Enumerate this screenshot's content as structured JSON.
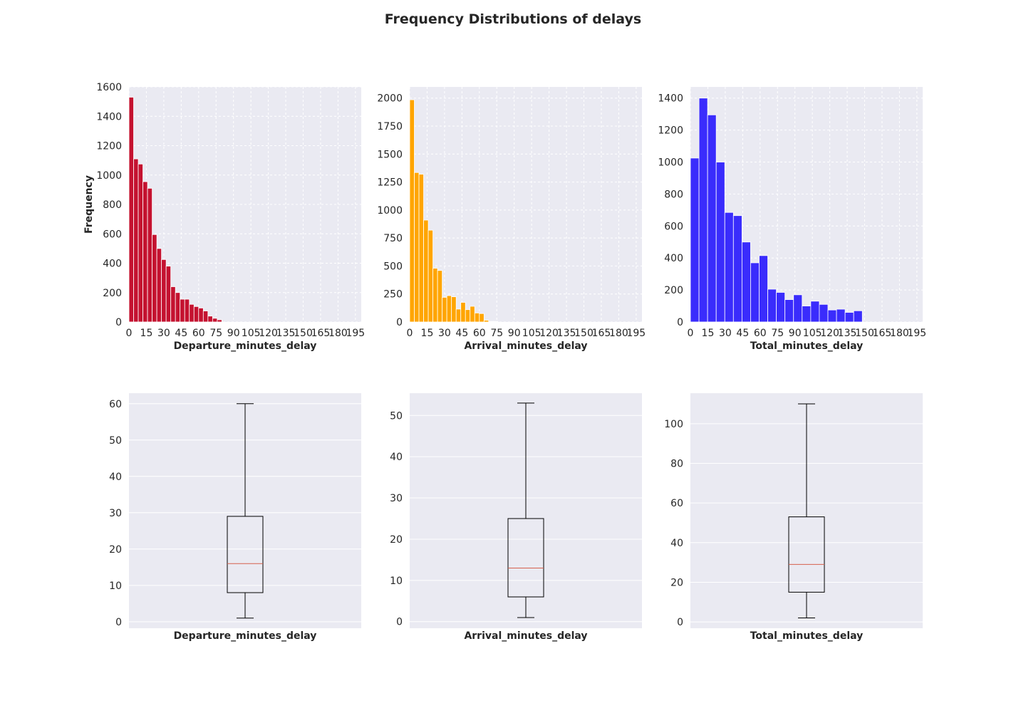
{
  "title": "Frequency Distributions of delays",
  "colors": {
    "background": "#eaeaf2",
    "grid": "#ffffff",
    "median": "#d6604d",
    "box_line": "#000000"
  },
  "chart_data": [
    {
      "type": "bar",
      "subtype": "histogram",
      "xlabel": "Departure_minutes_delay",
      "ylabel": "Frequency",
      "color": "#c41230",
      "xlim": [
        0,
        200
      ],
      "ylim": [
        0,
        1600
      ],
      "xticks": [
        0,
        15,
        30,
        45,
        60,
        75,
        90,
        105,
        120,
        135,
        150,
        165,
        180,
        195
      ],
      "yticks": [
        0,
        200,
        400,
        600,
        800,
        1000,
        1200,
        1400,
        1600
      ],
      "bin_width": 4,
      "bins": [
        {
          "x": 0,
          "value": 1530
        },
        {
          "x": 4,
          "value": 1110
        },
        {
          "x": 8,
          "value": 1075
        },
        {
          "x": 12,
          "value": 955
        },
        {
          "x": 16,
          "value": 910
        },
        {
          "x": 20,
          "value": 595
        },
        {
          "x": 24,
          "value": 500
        },
        {
          "x": 28,
          "value": 425
        },
        {
          "x": 32,
          "value": 380
        },
        {
          "x": 36,
          "value": 240
        },
        {
          "x": 40,
          "value": 200
        },
        {
          "x": 44,
          "value": 155
        },
        {
          "x": 48,
          "value": 155
        },
        {
          "x": 52,
          "value": 120
        },
        {
          "x": 56,
          "value": 105
        },
        {
          "x": 60,
          "value": 95
        },
        {
          "x": 64,
          "value": 75
        },
        {
          "x": 68,
          "value": 40
        },
        {
          "x": 72,
          "value": 25
        },
        {
          "x": 76,
          "value": 15
        }
      ],
      "grid": true,
      "grid_style": "dashed"
    },
    {
      "type": "bar",
      "subtype": "histogram",
      "xlabel": "Arrival_minutes_delay",
      "ylabel": "",
      "color": "#ffa500",
      "xlim": [
        0,
        200
      ],
      "ylim": [
        0,
        2100
      ],
      "xticks": [
        0,
        15,
        30,
        45,
        60,
        75,
        90,
        105,
        120,
        135,
        150,
        165,
        180,
        195
      ],
      "yticks": [
        0,
        250,
        500,
        750,
        1000,
        1250,
        1500,
        1750,
        2000
      ],
      "bin_width": 4,
      "bins": [
        {
          "x": 0,
          "value": 1985
        },
        {
          "x": 4,
          "value": 1335
        },
        {
          "x": 8,
          "value": 1320
        },
        {
          "x": 12,
          "value": 910
        },
        {
          "x": 16,
          "value": 820
        },
        {
          "x": 20,
          "value": 480
        },
        {
          "x": 24,
          "value": 460
        },
        {
          "x": 28,
          "value": 220
        },
        {
          "x": 32,
          "value": 235
        },
        {
          "x": 36,
          "value": 225
        },
        {
          "x": 40,
          "value": 115
        },
        {
          "x": 44,
          "value": 175
        },
        {
          "x": 48,
          "value": 110
        },
        {
          "x": 52,
          "value": 140
        },
        {
          "x": 56,
          "value": 80
        },
        {
          "x": 60,
          "value": 75
        },
        {
          "x": 64,
          "value": 15
        },
        {
          "x": 68,
          "value": 5
        },
        {
          "x": 72,
          "value": 5
        }
      ],
      "grid": true,
      "grid_style": "dashed"
    },
    {
      "type": "bar",
      "subtype": "histogram",
      "xlabel": "Total_minutes_delay",
      "ylabel": "",
      "color": "#3a2cfc",
      "xlim": [
        0,
        200
      ],
      "ylim": [
        0,
        1470
      ],
      "xticks": [
        0,
        15,
        30,
        45,
        60,
        75,
        90,
        105,
        120,
        135,
        150,
        165,
        180,
        195
      ],
      "yticks": [
        0,
        200,
        400,
        600,
        800,
        1000,
        1200,
        1400
      ],
      "bin_width": 7.4,
      "bins": [
        {
          "x": 0,
          "value": 1025
        },
        {
          "x": 7.4,
          "value": 1400
        },
        {
          "x": 14.8,
          "value": 1295
        },
        {
          "x": 22.2,
          "value": 1000
        },
        {
          "x": 29.6,
          "value": 685
        },
        {
          "x": 37,
          "value": 665
        },
        {
          "x": 44.4,
          "value": 500
        },
        {
          "x": 51.8,
          "value": 370
        },
        {
          "x": 59.2,
          "value": 415
        },
        {
          "x": 66.6,
          "value": 205
        },
        {
          "x": 74,
          "value": 185
        },
        {
          "x": 81.4,
          "value": 140
        },
        {
          "x": 88.8,
          "value": 170
        },
        {
          "x": 96.2,
          "value": 100
        },
        {
          "x": 103.6,
          "value": 130
        },
        {
          "x": 111,
          "value": 110
        },
        {
          "x": 118.4,
          "value": 75
        },
        {
          "x": 125.8,
          "value": 80
        },
        {
          "x": 133.2,
          "value": 60
        },
        {
          "x": 140.6,
          "value": 70
        }
      ],
      "grid": true,
      "grid_style": "dashed"
    },
    {
      "type": "box",
      "xlabel": "Departure_minutes_delay",
      "ylim": [
        -1.8,
        62.9
      ],
      "yticks": [
        0,
        10,
        20,
        30,
        40,
        50,
        60
      ],
      "whisker_low": 1,
      "q1": 8,
      "median": 16,
      "q3": 29,
      "whisker_high": 60,
      "grid": true
    },
    {
      "type": "box",
      "xlabel": "Arrival_minutes_delay",
      "ylim": [
        -1.6,
        55.4
      ],
      "yticks": [
        0,
        10,
        20,
        30,
        40,
        50
      ],
      "whisker_low": 1,
      "q1": 6,
      "median": 13,
      "q3": 25,
      "whisker_high": 53,
      "grid": true
    },
    {
      "type": "box",
      "xlabel": "Total_minutes_delay",
      "ylim": [
        -3.2,
        115.4
      ],
      "yticks": [
        0,
        20,
        40,
        60,
        80,
        100
      ],
      "whisker_low": 2,
      "q1": 15,
      "median": 29,
      "q3": 53,
      "whisker_high": 110,
      "grid": true
    }
  ]
}
